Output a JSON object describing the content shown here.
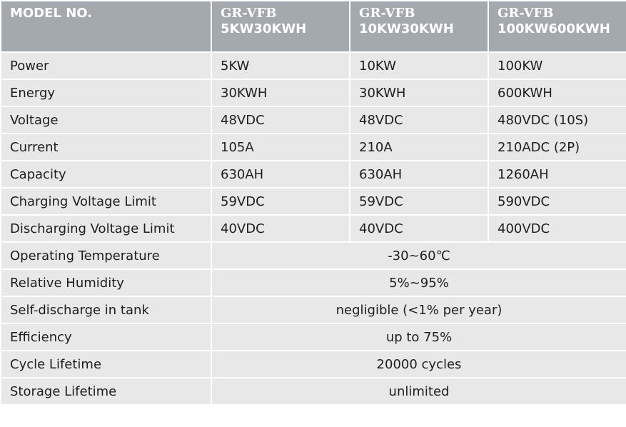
{
  "table": {
    "header": [
      {
        "label": "MODEL NO."
      },
      {
        "brand": "GR-VFB",
        "model": "5KW30KWH"
      },
      {
        "brand": "GR-VFB",
        "model": "10KW30KWH"
      },
      {
        "brand": "GR-VFB",
        "model": "100KW600KWH"
      }
    ],
    "rows": [
      {
        "label": "Power",
        "values": [
          "5KW",
          "10KW",
          "100KW"
        ]
      },
      {
        "label": "Energy",
        "values": [
          "30KWH",
          "30KWH",
          "600KWH"
        ]
      },
      {
        "label": "Voltage",
        "values": [
          "48VDC",
          "48VDC",
          "480VDC (10S)"
        ]
      },
      {
        "label": "Current",
        "values": [
          "105A",
          "210A",
          "210ADC (2P)"
        ]
      },
      {
        "label": "Capacity",
        "values": [
          "630AH",
          "630AH",
          "1260AH"
        ]
      },
      {
        "label": "Charging Voltage Limit",
        "values": [
          "59VDC",
          "59VDC",
          "590VDC"
        ]
      },
      {
        "label": "Discharging Voltage Limit",
        "values": [
          "40VDC",
          "40VDC",
          "400VDC"
        ]
      },
      {
        "label": "Operating Temperature",
        "value": "-30~60℃"
      },
      {
        "label": "Relative Humidity",
        "value": "5%~95%"
      },
      {
        "label": "Self-discharge in tank",
        "value": "negligible (<1% per year)"
      },
      {
        "label": "Efficiency",
        "value": "up to 75%"
      },
      {
        "label": "Cycle Lifetime",
        "value": "20000 cycles"
      },
      {
        "label": "Storage Lifetime",
        "value": "unlimited"
      }
    ]
  }
}
